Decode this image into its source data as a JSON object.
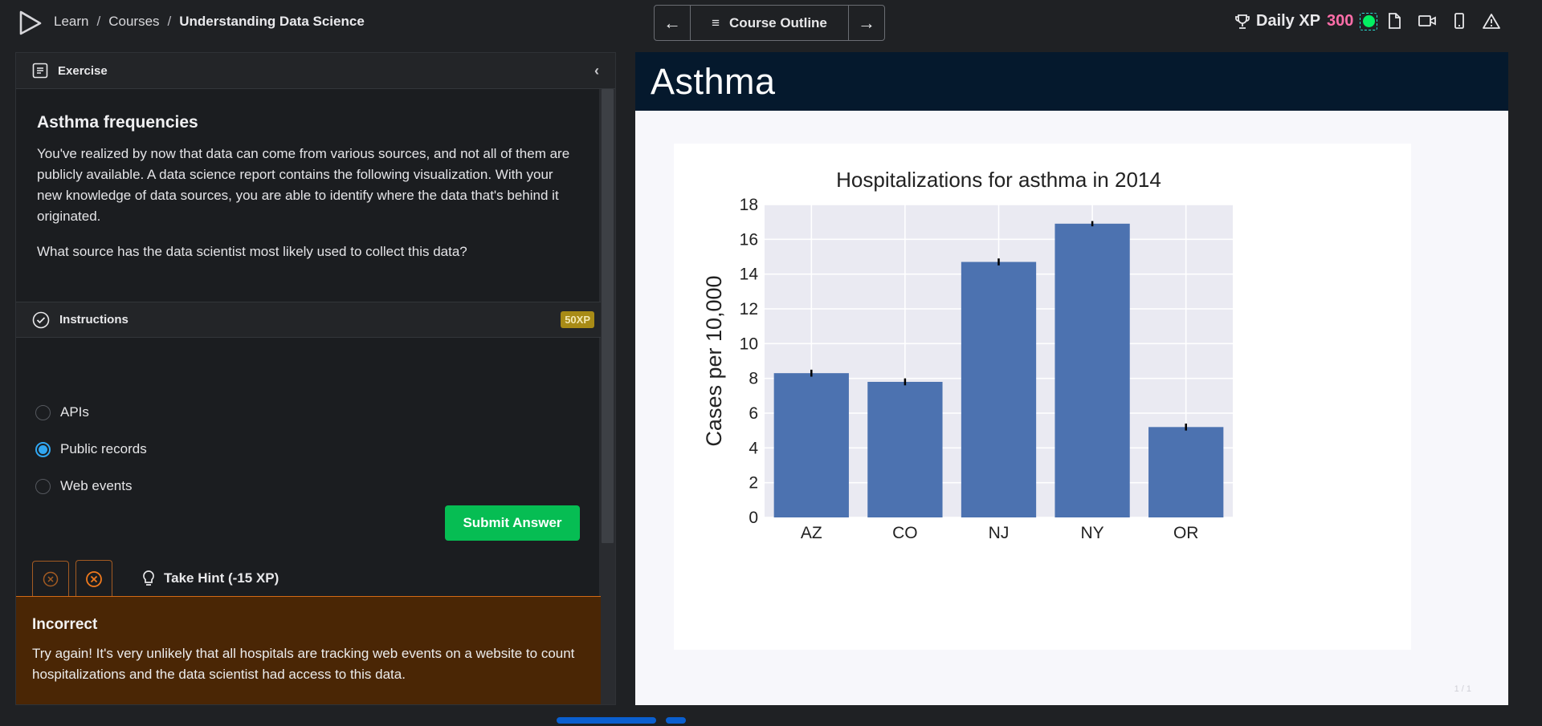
{
  "breadcrumb": {
    "items": [
      "Learn",
      "Courses"
    ],
    "current": "Understanding Data Science"
  },
  "topnav": {
    "outline_label": "Course Outline"
  },
  "xp": {
    "label": "Daily XP",
    "value": "300"
  },
  "exercise": {
    "header": "Exercise",
    "title": "Asthma frequencies",
    "paragraphs": [
      "You've realized by now that data can come from various sources, and not all of them are publicly available. A data science report contains the following visualization. With your new knowledge of data sources, you are able to identify where the data that's behind it originated.",
      "What source has the data scientist most likely used to collect this data?"
    ]
  },
  "instructions": {
    "header": "Instructions",
    "xp_badge": "50XP"
  },
  "options": [
    {
      "label": "APIs",
      "selected": false
    },
    {
      "label": "Public records",
      "selected": true
    },
    {
      "label": "Web events",
      "selected": false
    }
  ],
  "submit_label": "Submit Answer",
  "hint_label": "Take Hint (-15 XP)",
  "feedback": {
    "title": "Incorrect",
    "text": "Try again! It's very unlikely that all hospitals are tracking web events on a website to count hospitalizations and the data scientist had access to this data."
  },
  "slide": {
    "title": "Asthma",
    "page": "1 / 1"
  },
  "chart_data": {
    "type": "bar",
    "title": "Hospitalizations for asthma in 2014",
    "xlabel": "",
    "ylabel": "Cases per 10,000",
    "categories": [
      "AZ",
      "CO",
      "NJ",
      "NY",
      "OR"
    ],
    "values": [
      8.3,
      7.8,
      14.7,
      16.9,
      5.2
    ],
    "errors": [
      0.2,
      0.2,
      0.2,
      0.15,
      0.2
    ],
    "ylim": [
      0,
      18
    ],
    "yticks": [
      0,
      2,
      4,
      6,
      8,
      10,
      12,
      14,
      16,
      18
    ],
    "grid": true,
    "bar_color": "#4c72b0",
    "plot_bg": "#eaeaf2"
  },
  "colors": {
    "accent_green": "#03ef62",
    "xp_pink": "#ff6ea9",
    "radio_blue": "#31a7f2",
    "submit_green": "#06bd53"
  }
}
